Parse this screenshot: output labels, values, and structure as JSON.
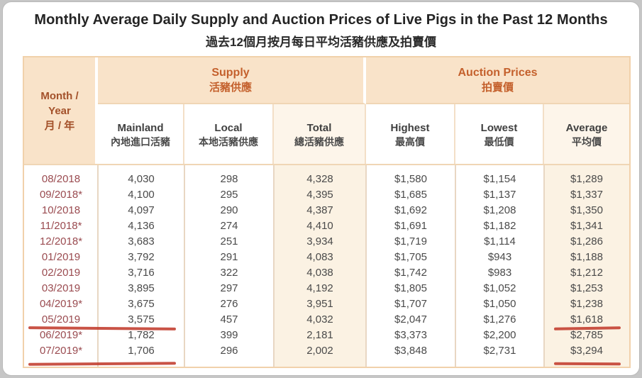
{
  "title": "Monthly Average Daily Supply and Auction Prices of Live Pigs in the Past 12 Months",
  "subtitle": "過去12個月按月每日平均活豬供應及拍賣價",
  "header": {
    "month": {
      "line1": "Month /",
      "line2": "Year",
      "line3": "月 / 年"
    },
    "supply": {
      "en": "Supply",
      "zh": "活豬供應"
    },
    "auction": {
      "en": "Auction Prices",
      "zh": "拍賣價"
    },
    "columns": [
      {
        "en": "Mainland",
        "zh": "內地進口活豬"
      },
      {
        "en": "Local",
        "zh": "本地活豬供應"
      },
      {
        "en": "Total",
        "zh": "總活豬供應"
      },
      {
        "en": "Highest",
        "zh": "最高價"
      },
      {
        "en": "Lowest",
        "zh": "最低價"
      },
      {
        "en": "Average",
        "zh": "平均價"
      }
    ]
  },
  "rows": [
    {
      "month": "08/2018",
      "cells": [
        "4,030",
        "298",
        "4,328",
        "$1,580",
        "$1,154",
        "$1,289"
      ],
      "underline": false
    },
    {
      "month": "09/2018*",
      "cells": [
        "4,100",
        "295",
        "4,395",
        "$1,685",
        "$1,137",
        "$1,337"
      ],
      "underline": false
    },
    {
      "month": "10/2018",
      "cells": [
        "4,097",
        "290",
        "4,387",
        "$1,692",
        "$1,208",
        "$1,350"
      ],
      "underline": false
    },
    {
      "month": "11/2018*",
      "cells": [
        "4,136",
        "274",
        "4,410",
        "$1,691",
        "$1,182",
        "$1,341"
      ],
      "underline": false
    },
    {
      "month": "12/2018*",
      "cells": [
        "3,683",
        "251",
        "3,934",
        "$1,719",
        "$1,114",
        "$1,286"
      ],
      "underline": false
    },
    {
      "month": "01/2019",
      "cells": [
        "3,792",
        "291",
        "4,083",
        "$1,705",
        "$943",
        "$1,188"
      ],
      "underline": false
    },
    {
      "month": "02/2019",
      "cells": [
        "3,716",
        "322",
        "4,038",
        "$1,742",
        "$983",
        "$1,212"
      ],
      "underline": false
    },
    {
      "month": "03/2019",
      "cells": [
        "3,895",
        "297",
        "4,192",
        "$1,805",
        "$1,052",
        "$1,253"
      ],
      "underline": false
    },
    {
      "month": "04/2019*",
      "cells": [
        "3,675",
        "276",
        "3,951",
        "$1,707",
        "$1,050",
        "$1,238"
      ],
      "underline": false
    },
    {
      "month": "05/2019",
      "cells": [
        "3,575",
        "457",
        "4,032",
        "$2,047",
        "$1,276",
        "$1,618"
      ],
      "underline": true
    },
    {
      "month": "06/2019*",
      "cells": [
        "1,782",
        "399",
        "2,181",
        "$3,373",
        "$2,200",
        "$2,785"
      ],
      "underline": false
    },
    {
      "month": "07/2019*",
      "cells": [
        "1,706",
        "296",
        "2,002",
        "$3,848",
        "$2,731",
        "$3,294"
      ],
      "underline": true
    }
  ],
  "chart_data": {
    "type": "table",
    "title": "Monthly Average Daily Supply and Auction Prices of Live Pigs in the Past 12 Months",
    "subtitle": "過去12個月按月每日平均活豬供應及拍賣價",
    "column_groups": [
      "Month / Year",
      "Supply 活豬供應",
      "Auction Prices 拍賣價"
    ],
    "columns": [
      "Month/Year",
      "Mainland 內地進口活豬",
      "Local 本地活豬供應",
      "Total 總活豬供應",
      "Highest 最高價",
      "Lowest 最低價",
      "Average 平均價"
    ],
    "rows": [
      [
        "08/2018",
        4030,
        298,
        4328,
        1580,
        1154,
        1289
      ],
      [
        "09/2018*",
        4100,
        295,
        4395,
        1685,
        1137,
        1337
      ],
      [
        "10/2018",
        4097,
        290,
        4387,
        1692,
        1208,
        1350
      ],
      [
        "11/2018*",
        4136,
        274,
        4410,
        1691,
        1182,
        1341
      ],
      [
        "12/2018*",
        3683,
        251,
        3934,
        1719,
        1114,
        1286
      ],
      [
        "01/2019",
        3792,
        291,
        4083,
        1705,
        943,
        1188
      ],
      [
        "02/2019",
        3716,
        322,
        4038,
        1742,
        983,
        1212
      ],
      [
        "03/2019",
        3895,
        297,
        4192,
        1805,
        1052,
        1253
      ],
      [
        "04/2019*",
        3675,
        276,
        3951,
        1707,
        1050,
        1238
      ],
      [
        "05/2019",
        3575,
        457,
        4032,
        2047,
        1276,
        1618
      ],
      [
        "06/2019*",
        1782,
        399,
        2181,
        3373,
        2200,
        2785
      ],
      [
        "07/2019*",
        1706,
        296,
        2002,
        3848,
        2731,
        3294
      ]
    ],
    "annotations": "Red hand-drawn underlines under the 05/2019 and 07/2019 rows (Month + Mainland cells) and under their Average prices $1,618 and $3,294"
  },
  "colors": {
    "header_fill": "#f9e3c9",
    "group_text": "#c4602c",
    "month_header_text": "#a3512a",
    "month_value_text": "#9a4b50",
    "data_text": "#4a4a4a",
    "tinted_column_fill": "#fbf2e3",
    "table_border": "#f1d1ab",
    "red_underline": "#c23b2c"
  }
}
